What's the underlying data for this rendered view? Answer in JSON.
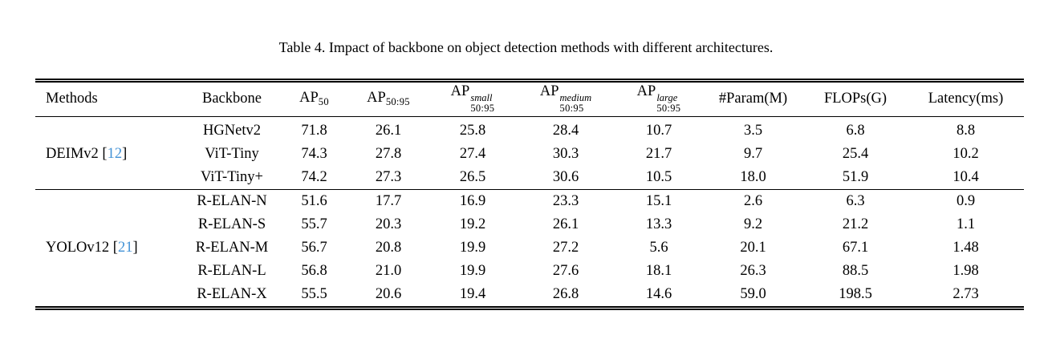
{
  "caption": "Table 4. Impact of backbone on object detection methods with different architectures.",
  "colors": {
    "citation_link": "#4292d6",
    "text": "#000000",
    "background": "#ffffff"
  },
  "table": {
    "cite_open": "[",
    "cite_close": "]",
    "headers": [
      {
        "id": "methods",
        "label": "Methods",
        "align": "left"
      },
      {
        "id": "backbone",
        "label": "Backbone"
      },
      {
        "id": "ap50",
        "base": "AP",
        "sub": "50"
      },
      {
        "id": "ap5095",
        "base": "AP",
        "sub": "50:95"
      },
      {
        "id": "ap-small",
        "base": "AP",
        "sup": "small",
        "sub": "50:95"
      },
      {
        "id": "ap-medium",
        "base": "AP",
        "sup": "medium",
        "sub": "50:95"
      },
      {
        "id": "ap-large",
        "base": "AP",
        "sup": "large",
        "sub": "50:95"
      },
      {
        "id": "params",
        "label": "#Param(M)"
      },
      {
        "id": "flops",
        "label": "FLOPs(G)"
      },
      {
        "id": "latency",
        "label": "Latency(ms)"
      }
    ],
    "groups": [
      {
        "method": "DEIMv2",
        "citation": "12",
        "rows": [
          {
            "backbone": "HGNetv2",
            "values": [
              "71.8",
              "26.1",
              "25.8",
              "28.4",
              "10.7",
              "3.5",
              "6.8",
              "8.8"
            ]
          },
          {
            "backbone": "ViT-Tiny",
            "values": [
              "74.3",
              "27.8",
              "27.4",
              "30.3",
              "21.7",
              "9.7",
              "25.4",
              "10.2"
            ]
          },
          {
            "backbone": "ViT-Tiny+",
            "values": [
              "74.2",
              "27.3",
              "26.5",
              "30.6",
              "10.5",
              "18.0",
              "51.9",
              "10.4"
            ]
          }
        ]
      },
      {
        "method": "YOLOv12",
        "citation": "21",
        "rows": [
          {
            "backbone": "R-ELAN-N",
            "values": [
              "51.6",
              "17.7",
              "16.9",
              "23.3",
              "15.1",
              "2.6",
              "6.3",
              "0.9"
            ]
          },
          {
            "backbone": "R-ELAN-S",
            "values": [
              "55.7",
              "20.3",
              "19.2",
              "26.1",
              "13.3",
              "9.2",
              "21.2",
              "1.1"
            ]
          },
          {
            "backbone": "R-ELAN-M",
            "values": [
              "56.7",
              "20.8",
              "19.9",
              "27.2",
              "5.6",
              "20.1",
              "67.1",
              "1.48"
            ]
          },
          {
            "backbone": "R-ELAN-L",
            "values": [
              "56.8",
              "21.0",
              "19.9",
              "27.6",
              "18.1",
              "26.3",
              "88.5",
              "1.98"
            ]
          },
          {
            "backbone": "R-ELAN-X",
            "values": [
              "55.5",
              "20.6",
              "19.4",
              "26.8",
              "14.6",
              "59.0",
              "198.5",
              "2.73"
            ]
          }
        ]
      }
    ]
  }
}
